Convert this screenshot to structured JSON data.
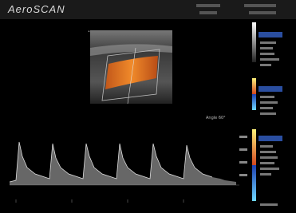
{
  "header": {
    "brand": "AeroSCAN"
  },
  "image": {
    "angle_label": "Angle 60°"
  }
}
